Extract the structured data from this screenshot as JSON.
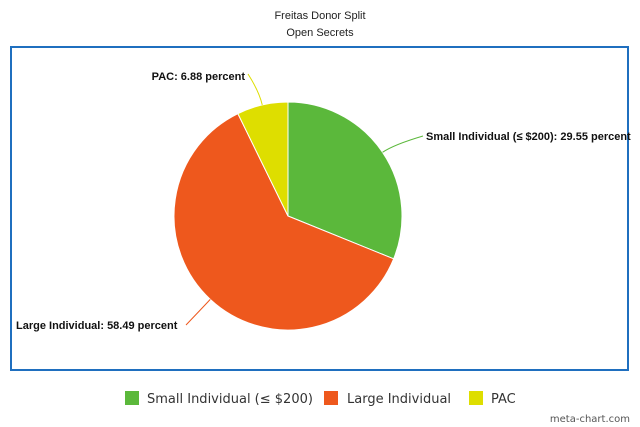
{
  "chart_data": {
    "type": "pie",
    "title": "Freitas Donor Split",
    "subtitle": "Open Secrets",
    "categories": [
      "Small Individual (≤ $200)",
      "Large Individual",
      "PAC"
    ],
    "values": [
      29.55,
      58.49,
      6.88
    ],
    "data_labels": [
      "Small Individual (≤ $200): 29.55 percent",
      "Large Individual: 58.49 percent",
      "PAC: 6.88 percent"
    ],
    "colors": [
      "#5bb83b",
      "#ee581d",
      "#dede00"
    ],
    "legend": {
      "placement": "bottom",
      "entries": [
        "Small Individual (≤ $200)",
        "Large Individual",
        "PAC"
      ]
    },
    "frame_color": "#1f6fbf",
    "credit": "meta-chart.com"
  }
}
